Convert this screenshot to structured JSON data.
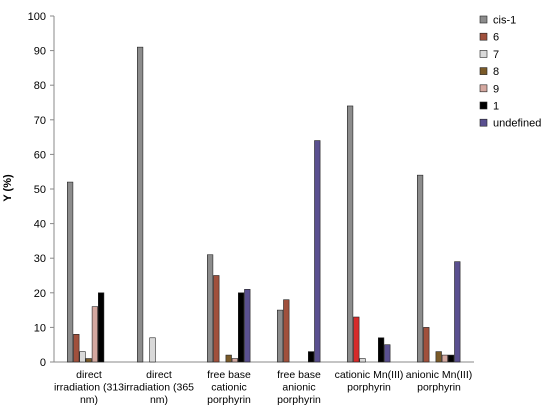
{
  "chart_data": {
    "type": "bar",
    "ylabel": "Y (%)",
    "xlabel": "",
    "ylim": [
      0,
      100
    ],
    "yticks": [
      0,
      10,
      20,
      30,
      40,
      50,
      60,
      70,
      80,
      90,
      100
    ],
    "categories": [
      [
        "direct",
        "irradiation (313",
        "nm)"
      ],
      [
        "direct",
        "irradiation (365",
        "nm)"
      ],
      [
        "free base",
        "cationic",
        "porphyrin"
      ],
      [
        "free base",
        "anionic",
        "porphyrin"
      ],
      [
        "cationic Mn(III)",
        "porphyrin"
      ],
      [
        "anionic Mn(III)",
        "porphyrin"
      ]
    ],
    "series": [
      {
        "name": "cis-1",
        "color": "#8c8c8c",
        "values": [
          52,
          91,
          31,
          15,
          74,
          54
        ]
      },
      {
        "name": "6",
        "color": "#a0503c",
        "values": [
          8,
          0,
          25,
          18,
          13,
          10
        ]
      },
      {
        "name": "7",
        "color": "#d9d9d9",
        "values": [
          3,
          7,
          0,
          0,
          1,
          0
        ]
      },
      {
        "name": "8",
        "color": "#7a5a28",
        "values": [
          1,
          0,
          2,
          0,
          0,
          3
        ]
      },
      {
        "name": "9",
        "color": "#d4a8a0",
        "values": [
          16,
          0,
          1,
          0,
          0,
          2
        ]
      },
      {
        "name": "1",
        "color": "#000000",
        "values": [
          20,
          0,
          20,
          3,
          7,
          2
        ]
      },
      {
        "name": "undefined",
        "color": "#5a5090",
        "values": [
          0,
          0,
          21,
          64,
          5,
          29
        ]
      }
    ],
    "bar_overrides": [
      {
        "category": 4,
        "series": 1,
        "color": "#d62a2a"
      }
    ],
    "grid": false,
    "legend_position": "right"
  }
}
